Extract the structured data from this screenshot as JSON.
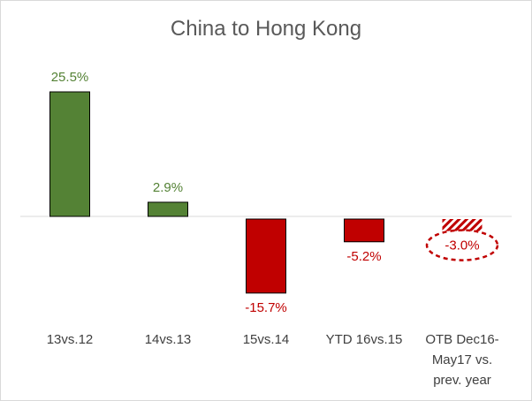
{
  "chart_data": {
    "type": "bar",
    "title": "China to Hong Kong",
    "categories": [
      [
        "13vs.12"
      ],
      [
        "14vs.13"
      ],
      [
        "15vs.14"
      ],
      [
        "YTD 16vs.15"
      ],
      [
        "OTB Dec16-",
        "May17 vs.",
        "prev. year"
      ]
    ],
    "values": [
      25.5,
      2.9,
      -15.7,
      -5.2,
      -3.0
    ],
    "value_labels": [
      "25.5%",
      "2.9%",
      "-15.7%",
      "-5.2%",
      "-3.0%"
    ],
    "unit": "%",
    "grid": false,
    "legend": "none",
    "ylim": [
      -20,
      28
    ],
    "bar_styles": [
      "solid",
      "solid",
      "solid",
      "solid",
      "hatched"
    ],
    "highlighted_label_index": 4
  },
  "colors": {
    "positive": "#548235",
    "negative": "#c00000",
    "axis": "#d9d9d9",
    "highlight_ellipse": "#c00000",
    "title": "#595959",
    "category_text": "#404040"
  }
}
